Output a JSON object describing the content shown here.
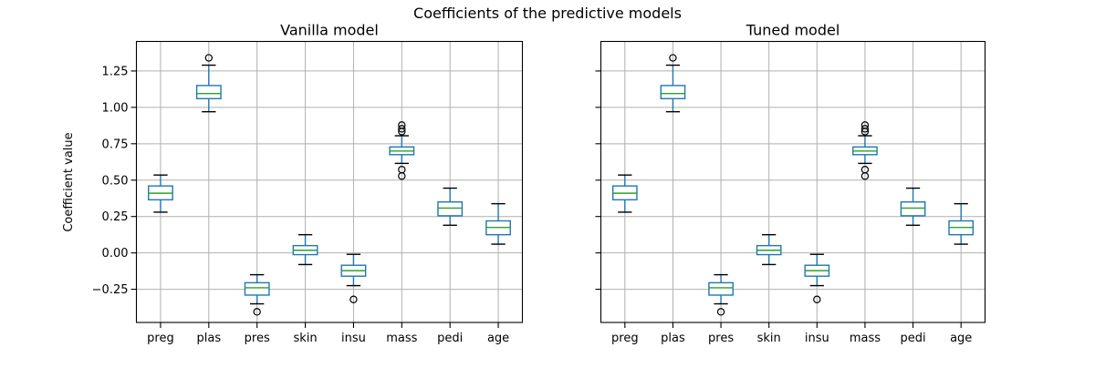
{
  "figure": {
    "title": "Coefficients of the predictive models",
    "background": "#ffffff"
  },
  "colors": {
    "box": "#1f77b4",
    "whisker": "#1f77b4",
    "median": "#2ca02c",
    "cap": "#000000",
    "flier": "#000000",
    "grid": "#b0b0b0",
    "spine": "#000000",
    "text": "#000000"
  },
  "chart_data": [
    {
      "type": "boxplot",
      "title": "Vanilla model",
      "ylabel": "Coefficient value",
      "xlabel": "",
      "grid": true,
      "legend": false,
      "categories": [
        "preg",
        "plas",
        "pres",
        "skin",
        "insu",
        "mass",
        "pedi",
        "age"
      ],
      "ylim": [
        -0.478,
        1.453
      ],
      "show_ytick_labels": true,
      "yticks": [
        {
          "value": -0.25,
          "label": "−0.25"
        },
        {
          "value": 0.0,
          "label": "0.00"
        },
        {
          "value": 0.25,
          "label": "0.25"
        },
        {
          "value": 0.5,
          "label": "0.50"
        },
        {
          "value": 0.75,
          "label": "0.75"
        },
        {
          "value": 1.0,
          "label": "1.00"
        },
        {
          "value": 1.25,
          "label": "1.25"
        }
      ],
      "boxes": [
        {
          "label": "preg",
          "whislo": 0.28,
          "q1": 0.365,
          "med": 0.41,
          "q3": 0.46,
          "whishi": 0.535,
          "fliers": []
        },
        {
          "label": "plas",
          "whislo": 0.97,
          "q1": 1.06,
          "med": 1.095,
          "q3": 1.15,
          "whishi": 1.29,
          "fliers": [
            1.34
          ]
        },
        {
          "label": "pres",
          "whislo": -0.35,
          "q1": -0.29,
          "med": -0.24,
          "q3": -0.205,
          "whishi": -0.15,
          "fliers": [
            -0.405
          ]
        },
        {
          "label": "skin",
          "whislo": -0.08,
          "q1": -0.012,
          "med": 0.018,
          "q3": 0.05,
          "whishi": 0.125,
          "fliers": []
        },
        {
          "label": "insu",
          "whislo": -0.225,
          "q1": -0.16,
          "med": -0.122,
          "q3": -0.085,
          "whishi": -0.01,
          "fliers": [
            -0.32
          ]
        },
        {
          "label": "mass",
          "whislo": 0.615,
          "q1": 0.675,
          "med": 0.7,
          "q3": 0.728,
          "whishi": 0.805,
          "fliers": [
            0.878,
            0.853,
            0.833,
            0.572,
            0.528
          ]
        },
        {
          "label": "pedi",
          "whislo": 0.19,
          "q1": 0.255,
          "med": 0.308,
          "q3": 0.35,
          "whishi": 0.445,
          "fliers": []
        },
        {
          "label": "age",
          "whislo": 0.06,
          "q1": 0.125,
          "med": 0.175,
          "q3": 0.22,
          "whishi": 0.338,
          "fliers": []
        }
      ]
    },
    {
      "type": "boxplot",
      "title": "Tuned model",
      "ylabel": "",
      "xlabel": "",
      "grid": true,
      "legend": false,
      "categories": [
        "preg",
        "plas",
        "pres",
        "skin",
        "insu",
        "mass",
        "pedi",
        "age"
      ],
      "ylim": [
        -0.478,
        1.453
      ],
      "show_ytick_labels": false,
      "yticks": [
        {
          "value": -0.25,
          "label": "−0.25"
        },
        {
          "value": 0.0,
          "label": "0.00"
        },
        {
          "value": 0.25,
          "label": "0.25"
        },
        {
          "value": 0.5,
          "label": "0.50"
        },
        {
          "value": 0.75,
          "label": "0.75"
        },
        {
          "value": 1.0,
          "label": "1.00"
        },
        {
          "value": 1.25,
          "label": "1.25"
        }
      ],
      "boxes": [
        {
          "label": "preg",
          "whislo": 0.28,
          "q1": 0.365,
          "med": 0.41,
          "q3": 0.46,
          "whishi": 0.535,
          "fliers": []
        },
        {
          "label": "plas",
          "whislo": 0.97,
          "q1": 1.06,
          "med": 1.095,
          "q3": 1.15,
          "whishi": 1.29,
          "fliers": [
            1.34
          ]
        },
        {
          "label": "pres",
          "whislo": -0.35,
          "q1": -0.29,
          "med": -0.24,
          "q3": -0.205,
          "whishi": -0.15,
          "fliers": [
            -0.405
          ]
        },
        {
          "label": "skin",
          "whislo": -0.08,
          "q1": -0.012,
          "med": 0.018,
          "q3": 0.05,
          "whishi": 0.125,
          "fliers": []
        },
        {
          "label": "insu",
          "whislo": -0.225,
          "q1": -0.16,
          "med": -0.122,
          "q3": -0.085,
          "whishi": -0.01,
          "fliers": [
            -0.32
          ]
        },
        {
          "label": "mass",
          "whislo": 0.615,
          "q1": 0.675,
          "med": 0.7,
          "q3": 0.728,
          "whishi": 0.805,
          "fliers": [
            0.878,
            0.853,
            0.833,
            0.572,
            0.528
          ]
        },
        {
          "label": "pedi",
          "whislo": 0.19,
          "q1": 0.255,
          "med": 0.308,
          "q3": 0.35,
          "whishi": 0.445,
          "fliers": []
        },
        {
          "label": "age",
          "whislo": 0.06,
          "q1": 0.125,
          "med": 0.175,
          "q3": 0.22,
          "whishi": 0.338,
          "fliers": []
        }
      ]
    }
  ]
}
